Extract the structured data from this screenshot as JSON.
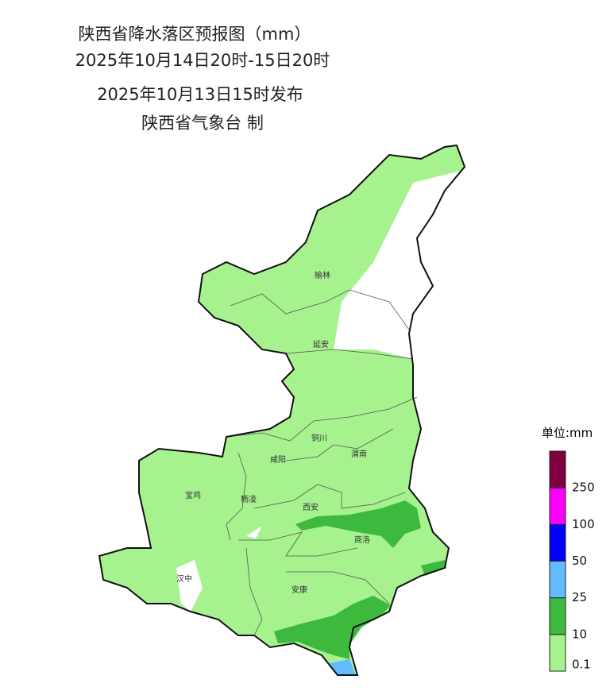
{
  "header": {
    "title": "陕西省降水落区预报图（mm）",
    "period": "2025年10月14日20时-15日20时",
    "issued": "2025年10月13日15时发布",
    "issuer": "陕西省气象台 制"
  },
  "cities": [
    {
      "label": "榆林"
    },
    {
      "label": "延安"
    },
    {
      "label": "铜川"
    },
    {
      "label": "渭南"
    },
    {
      "label": "咸阳"
    },
    {
      "label": "宝鸡"
    },
    {
      "label": "杨凌"
    },
    {
      "label": "西安"
    },
    {
      "label": "商洛"
    },
    {
      "label": "汉中"
    },
    {
      "label": "安康"
    }
  ],
  "legend": {
    "unit": "单位:mm",
    "colors": [
      "#a6f28f",
      "#3dba3d",
      "#61bbff",
      "#0000ff",
      "#fa00fa",
      "#800040"
    ],
    "thresholds": [
      0.1,
      10,
      25,
      50,
      100,
      250
    ]
  }
}
